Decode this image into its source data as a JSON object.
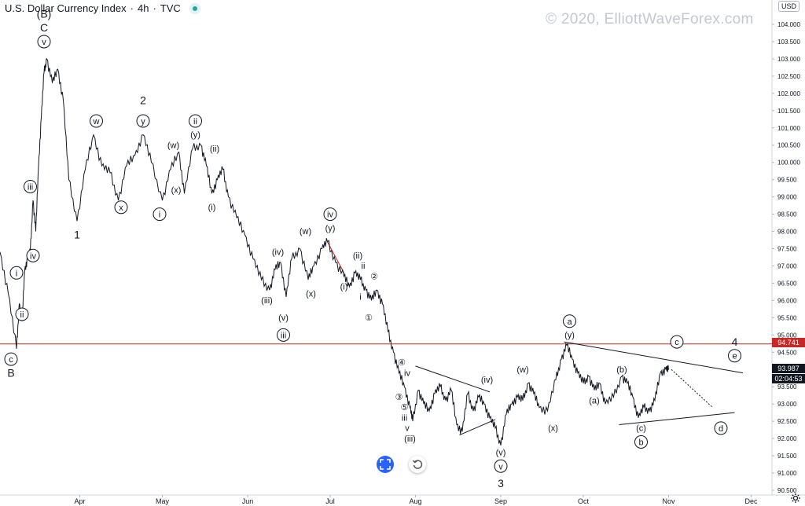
{
  "header": {
    "symbol": "U.S. Dollar Currency Index",
    "interval": "4h",
    "exchange": "TVC",
    "sep1": "·",
    "sep2": "·"
  },
  "watermark": "© 2020, ElliottWaveForex.com",
  "currency": "USD",
  "price_tags": {
    "level_line": "94.741",
    "last_price": "93.987",
    "countdown": "02:04:53"
  },
  "colors": {
    "price_line": "#131722",
    "level_line": "#c62828",
    "trendline": "#131722",
    "red_segment": "#c62828",
    "accent_blue": "#2962ff"
  },
  "icons": {
    "goto_realtime": "expand-arrows-icon",
    "reset": "reset-arrow-icon",
    "settings": "gear-icon"
  },
  "chart_data": {
    "type": "line",
    "title": "U.S. Dollar Currency Index, 4h",
    "y_axis_position": "right",
    "ylim": [
      90.5,
      104.5
    ],
    "y_ticks": [
      "90.500",
      "91.000",
      "91.500",
      "92.000",
      "92.500",
      "93.000",
      "93.500",
      "94.000",
      "94.500",
      "95.000",
      "95.500",
      "96.000",
      "96.500",
      "97.000",
      "97.500",
      "98.000",
      "98.500",
      "99.000",
      "99.500",
      "100.000",
      "100.500",
      "101.000",
      "101.500",
      "102.000",
      "102.500",
      "103.000",
      "103.500",
      "104.000"
    ],
    "x_tick_labels": [
      {
        "label": "Apr",
        "x": "2020-04-01"
      },
      {
        "label": "May",
        "x": "2020-05-01"
      },
      {
        "label": "Jun",
        "x": "2020-06-01"
      },
      {
        "label": "Jul",
        "x": "2020-07-01"
      },
      {
        "label": "Aug",
        "x": "2020-08-01"
      },
      {
        "label": "Sep",
        "x": "2020-09-01"
      },
      {
        "label": "Oct",
        "x": "2020-10-01"
      },
      {
        "label": "Nov",
        "x": "2020-11-01"
      },
      {
        "label": "Dec",
        "x": "2020-12-01"
      }
    ],
    "xlim": [
      "2020-03-03",
      "2020-12-08"
    ],
    "series": [
      {
        "values": [
          {
            "x": "2020-03-03",
            "y": 97.4
          },
          {
            "x": "2020-03-06",
            "y": 96.2
          },
          {
            "x": "2020-03-09",
            "y": 94.6
          },
          {
            "x": "2020-03-10",
            "y": 95.9
          },
          {
            "x": "2020-03-11",
            "y": 95.4
          },
          {
            "x": "2020-03-12",
            "y": 96.9
          },
          {
            "x": "2020-03-13",
            "y": 97.2
          },
          {
            "x": "2020-03-14",
            "y": 97.4
          },
          {
            "x": "2020-03-15",
            "y": 98.9
          },
          {
            "x": "2020-03-16",
            "y": 98.0
          },
          {
            "x": "2020-03-17",
            "y": 99.9
          },
          {
            "x": "2020-03-18",
            "y": 101.3
          },
          {
            "x": "2020-03-19",
            "y": 102.6
          },
          {
            "x": "2020-03-20",
            "y": 103.0
          },
          {
            "x": "2020-03-22",
            "y": 102.3
          },
          {
            "x": "2020-03-24",
            "y": 102.7
          },
          {
            "x": "2020-03-26",
            "y": 101.8
          },
          {
            "x": "2020-03-28",
            "y": 99.5
          },
          {
            "x": "2020-03-31",
            "y": 98.3
          },
          {
            "x": "2020-04-03",
            "y": 99.8
          },
          {
            "x": "2020-04-06",
            "y": 100.8
          },
          {
            "x": "2020-04-09",
            "y": 99.9
          },
          {
            "x": "2020-04-12",
            "y": 99.7
          },
          {
            "x": "2020-04-15",
            "y": 98.9
          },
          {
            "x": "2020-04-18",
            "y": 99.9
          },
          {
            "x": "2020-04-21",
            "y": 100.2
          },
          {
            "x": "2020-04-24",
            "y": 100.8
          },
          {
            "x": "2020-04-27",
            "y": 100.0
          },
          {
            "x": "2020-05-01",
            "y": 98.9
          },
          {
            "x": "2020-05-04",
            "y": 99.8
          },
          {
            "x": "2020-05-07",
            "y": 100.3
          },
          {
            "x": "2020-05-09",
            "y": 99.1
          },
          {
            "x": "2020-05-12",
            "y": 100.4
          },
          {
            "x": "2020-05-15",
            "y": 100.5
          },
          {
            "x": "2020-05-17",
            "y": 99.9
          },
          {
            "x": "2020-05-19",
            "y": 99.1
          },
          {
            "x": "2020-05-21",
            "y": 99.5
          },
          {
            "x": "2020-05-23",
            "y": 99.8
          },
          {
            "x": "2020-05-25",
            "y": 99.0
          },
          {
            "x": "2020-05-28",
            "y": 98.4
          },
          {
            "x": "2020-05-31",
            "y": 97.9
          },
          {
            "x": "2020-06-03",
            "y": 97.2
          },
          {
            "x": "2020-06-06",
            "y": 96.6
          },
          {
            "x": "2020-06-09",
            "y": 96.3
          },
          {
            "x": "2020-06-11",
            "y": 96.9
          },
          {
            "x": "2020-06-13",
            "y": 97.1
          },
          {
            "x": "2020-06-15",
            "y": 96.1
          },
          {
            "x": "2020-06-17",
            "y": 97.2
          },
          {
            "x": "2020-06-20",
            "y": 97.5
          },
          {
            "x": "2020-06-23",
            "y": 96.6
          },
          {
            "x": "2020-06-25",
            "y": 97.0
          },
          {
            "x": "2020-06-28",
            "y": 97.5
          },
          {
            "x": "2020-06-30",
            "y": 97.7
          },
          {
            "x": "2020-07-03",
            "y": 97.1
          },
          {
            "x": "2020-07-06",
            "y": 96.7
          },
          {
            "x": "2020-07-08",
            "y": 96.4
          },
          {
            "x": "2020-07-10",
            "y": 96.8
          },
          {
            "x": "2020-07-12",
            "y": 96.6
          },
          {
            "x": "2020-07-14",
            "y": 96.3
          },
          {
            "x": "2020-07-16",
            "y": 96.0
          },
          {
            "x": "2020-07-18",
            "y": 96.3
          },
          {
            "x": "2020-07-20",
            "y": 95.9
          },
          {
            "x": "2020-07-22",
            "y": 95.1
          },
          {
            "x": "2020-07-24",
            "y": 94.5
          },
          {
            "x": "2020-07-26",
            "y": 93.9
          },
          {
            "x": "2020-07-28",
            "y": 93.5
          },
          {
            "x": "2020-07-30",
            "y": 92.9
          },
          {
            "x": "2020-07-31",
            "y": 92.5
          },
          {
            "x": "2020-08-02",
            "y": 93.4
          },
          {
            "x": "2020-08-04",
            "y": 93.0
          },
          {
            "x": "2020-08-06",
            "y": 92.8
          },
          {
            "x": "2020-08-08",
            "y": 93.3
          },
          {
            "x": "2020-08-10",
            "y": 93.5
          },
          {
            "x": "2020-08-12",
            "y": 93.1
          },
          {
            "x": "2020-08-14",
            "y": 93.4
          },
          {
            "x": "2020-08-16",
            "y": 92.4
          },
          {
            "x": "2020-08-18",
            "y": 92.2
          },
          {
            "x": "2020-08-20",
            "y": 93.3
          },
          {
            "x": "2020-08-22",
            "y": 92.8
          },
          {
            "x": "2020-08-24",
            "y": 93.2
          },
          {
            "x": "2020-08-26",
            "y": 93.0
          },
          {
            "x": "2020-08-28",
            "y": 92.6
          },
          {
            "x": "2020-08-30",
            "y": 92.3
          },
          {
            "x": "2020-09-01",
            "y": 91.8
          },
          {
            "x": "2020-09-03",
            "y": 92.7
          },
          {
            "x": "2020-09-05",
            "y": 93.0
          },
          {
            "x": "2020-09-07",
            "y": 93.2
          },
          {
            "x": "2020-09-09",
            "y": 93.1
          },
          {
            "x": "2020-09-11",
            "y": 93.6
          },
          {
            "x": "2020-09-13",
            "y": 93.3
          },
          {
            "x": "2020-09-15",
            "y": 92.9
          },
          {
            "x": "2020-09-18",
            "y": 92.8
          },
          {
            "x": "2020-09-21",
            "y": 93.7
          },
          {
            "x": "2020-09-23",
            "y": 94.3
          },
          {
            "x": "2020-09-25",
            "y": 94.7
          },
          {
            "x": "2020-09-27",
            "y": 94.3
          },
          {
            "x": "2020-09-29",
            "y": 93.9
          },
          {
            "x": "2020-10-01",
            "y": 93.6
          },
          {
            "x": "2020-10-03",
            "y": 93.8
          },
          {
            "x": "2020-10-05",
            "y": 93.4
          },
          {
            "x": "2020-10-07",
            "y": 93.6
          },
          {
            "x": "2020-10-09",
            "y": 93.0
          },
          {
            "x": "2020-10-12",
            "y": 93.2
          },
          {
            "x": "2020-10-15",
            "y": 93.8
          },
          {
            "x": "2020-10-17",
            "y": 93.6
          },
          {
            "x": "2020-10-19",
            "y": 93.2
          },
          {
            "x": "2020-10-21",
            "y": 92.6
          },
          {
            "x": "2020-10-23",
            "y": 92.9
          },
          {
            "x": "2020-10-25",
            "y": 92.8
          },
          {
            "x": "2020-10-27",
            "y": 93.1
          },
          {
            "x": "2020-10-29",
            "y": 93.9
          },
          {
            "x": "2020-10-31",
            "y": 94.0
          },
          {
            "x": "2020-11-01",
            "y": 93.99
          }
        ]
      }
    ],
    "level_line": {
      "y": 94.741
    },
    "lines": [
      {
        "name": "upper-trendline",
        "from": {
          "x": "2020-09-24",
          "y": 94.8
        },
        "to": {
          "x": "2020-11-28",
          "y": 93.9
        }
      },
      {
        "name": "lower-trendline",
        "from": {
          "x": "2020-10-14",
          "y": 92.4
        },
        "to": {
          "x": "2020-11-25",
          "y": 92.75
        }
      },
      {
        "name": "triangle-upper",
        "from": {
          "x": "2020-08-01",
          "y": 94.1
        },
        "to": {
          "x": "2020-08-28",
          "y": 93.35
        }
      },
      {
        "name": "triangle-lower",
        "from": {
          "x": "2020-08-17",
          "y": 92.1
        },
        "to": {
          "x": "2020-08-30",
          "y": 92.55
        }
      },
      {
        "name": "red-channel",
        "from": {
          "x": "2020-06-30",
          "y": 97.7
        },
        "to": {
          "x": "2020-07-06",
          "y": 96.8
        }
      },
      {
        "name": "projection",
        "dashed": true,
        "from": {
          "x": "2020-11-02",
          "y": 94.0
        },
        "to": {
          "x": "2020-11-17",
          "y": 92.9
        }
      }
    ],
    "annotations": [
      {
        "text": "(B)",
        "x": "2020-03-19",
        "y": 104.3,
        "style": "plain",
        "size": "lg"
      },
      {
        "text": "C",
        "x": "2020-03-19",
        "y": 103.9,
        "style": "plain",
        "size": "lg"
      },
      {
        "text": "v",
        "x": "2020-03-19",
        "y": 103.5,
        "style": "circle"
      },
      {
        "text": "w",
        "x": "2020-04-07",
        "y": 101.2,
        "style": "circle"
      },
      {
        "text": "2",
        "x": "2020-04-24",
        "y": 101.8,
        "style": "plain",
        "size": "lg"
      },
      {
        "text": "y",
        "x": "2020-04-24",
        "y": 101.2,
        "style": "circle"
      },
      {
        "text": "ii",
        "x": "2020-05-13",
        "y": 101.2,
        "style": "circle"
      },
      {
        "text": "(y)",
        "x": "2020-05-13",
        "y": 100.8,
        "style": "plain"
      },
      {
        "text": "(w)",
        "x": "2020-05-05",
        "y": 100.5,
        "style": "plain"
      },
      {
        "text": "(ii)",
        "x": "2020-05-20",
        "y": 100.4,
        "style": "plain"
      },
      {
        "text": "(x)",
        "x": "2020-05-06",
        "y": 99.2,
        "style": "plain"
      },
      {
        "text": "x",
        "x": "2020-04-16",
        "y": 98.7,
        "style": "circle"
      },
      {
        "text": "i",
        "x": "2020-04-30",
        "y": 98.5,
        "style": "circle"
      },
      {
        "text": "(i)",
        "x": "2020-05-19",
        "y": 98.7,
        "style": "plain"
      },
      {
        "text": "1",
        "x": "2020-03-31",
        "y": 97.9,
        "style": "plain",
        "size": "lg"
      },
      {
        "text": "iii",
        "x": "2020-03-14",
        "y": 99.3,
        "style": "circle"
      },
      {
        "text": "iv",
        "x": "2020-03-15",
        "y": 97.3,
        "style": "circle"
      },
      {
        "text": "i",
        "x": "2020-03-09",
        "y": 96.8,
        "style": "circle"
      },
      {
        "text": "ii",
        "x": "2020-03-11",
        "y": 95.6,
        "style": "circle"
      },
      {
        "text": "c",
        "x": "2020-03-07",
        "y": 94.3,
        "style": "circle"
      },
      {
        "text": "B",
        "x": "2020-03-07",
        "y": 93.9,
        "style": "plain",
        "size": "lg"
      },
      {
        "text": "iv",
        "x": "2020-07-01",
        "y": 98.5,
        "style": "circle"
      },
      {
        "text": "(y)",
        "x": "2020-07-01",
        "y": 98.1,
        "style": "plain"
      },
      {
        "text": "(w)",
        "x": "2020-06-22",
        "y": 98.0,
        "style": "plain"
      },
      {
        "text": "(iv)",
        "x": "2020-06-12",
        "y": 97.4,
        "style": "plain"
      },
      {
        "text": "(iii)",
        "x": "2020-06-08",
        "y": 96.0,
        "style": "plain"
      },
      {
        "text": "(v)",
        "x": "2020-06-14",
        "y": 95.5,
        "style": "plain"
      },
      {
        "text": "iii",
        "x": "2020-06-14",
        "y": 95.0,
        "style": "circle"
      },
      {
        "text": "(x)",
        "x": "2020-06-24",
        "y": 96.2,
        "style": "plain"
      },
      {
        "text": "(ii)",
        "x": "2020-07-11",
        "y": 97.3,
        "style": "plain"
      },
      {
        "text": "ii",
        "x": "2020-07-13",
        "y": 97.0,
        "style": "plain"
      },
      {
        "text": "②",
        "x": "2020-07-17",
        "y": 96.7,
        "style": "plain",
        "size": "sm"
      },
      {
        "text": "(i)",
        "x": "2020-07-06",
        "y": 96.4,
        "style": "plain"
      },
      {
        "text": "i",
        "x": "2020-07-12",
        "y": 96.1,
        "style": "plain"
      },
      {
        "text": "①",
        "x": "2020-07-15",
        "y": 95.5,
        "style": "plain",
        "size": "sm"
      },
      {
        "text": "④",
        "x": "2020-07-27",
        "y": 94.2,
        "style": "plain",
        "size": "sm"
      },
      {
        "text": "iv",
        "x": "2020-07-29",
        "y": 93.9,
        "style": "plain"
      },
      {
        "text": "③",
        "x": "2020-07-26",
        "y": 93.2,
        "style": "plain",
        "size": "sm"
      },
      {
        "text": "⑤",
        "x": "2020-07-28",
        "y": 92.9,
        "style": "plain",
        "size": "sm"
      },
      {
        "text": "iii",
        "x": "2020-07-28",
        "y": 92.6,
        "style": "plain"
      },
      {
        "text": "v",
        "x": "2020-07-29",
        "y": 92.3,
        "style": "plain"
      },
      {
        "text": "(iii)",
        "x": "2020-07-30",
        "y": 92.0,
        "style": "plain"
      },
      {
        "text": "(iv)",
        "x": "2020-08-27",
        "y": 93.7,
        "style": "plain"
      },
      {
        "text": "(w)",
        "x": "2020-09-09",
        "y": 94.0,
        "style": "plain"
      },
      {
        "text": "(x)",
        "x": "2020-09-20",
        "y": 92.3,
        "style": "plain"
      },
      {
        "text": "(v)",
        "x": "2020-09-01",
        "y": 91.6,
        "style": "plain"
      },
      {
        "text": "v",
        "x": "2020-09-01",
        "y": 91.2,
        "style": "circle"
      },
      {
        "text": "3",
        "x": "2020-09-01",
        "y": 90.7,
        "style": "plain",
        "size": "lg"
      },
      {
        "text": "a",
        "x": "2020-09-26",
        "y": 95.4,
        "style": "circle"
      },
      {
        "text": "(y)",
        "x": "2020-09-26",
        "y": 95.0,
        "style": "plain"
      },
      {
        "text": "(b)",
        "x": "2020-10-15",
        "y": 94.0,
        "style": "plain"
      },
      {
        "text": "(a)",
        "x": "2020-10-05",
        "y": 93.1,
        "style": "plain"
      },
      {
        "text": "(c)",
        "x": "2020-10-22",
        "y": 92.3,
        "style": "plain"
      },
      {
        "text": "b",
        "x": "2020-10-22",
        "y": 91.9,
        "style": "circle"
      },
      {
        "text": "c",
        "x": "2020-11-04",
        "y": 94.8,
        "style": "circle"
      },
      {
        "text": "4",
        "x": "2020-11-25",
        "y": 94.8,
        "style": "plain",
        "size": "lg"
      },
      {
        "text": "e",
        "x": "2020-11-25",
        "y": 94.4,
        "style": "circle"
      },
      {
        "text": "d",
        "x": "2020-11-20",
        "y": 92.3,
        "style": "circle"
      }
    ]
  }
}
